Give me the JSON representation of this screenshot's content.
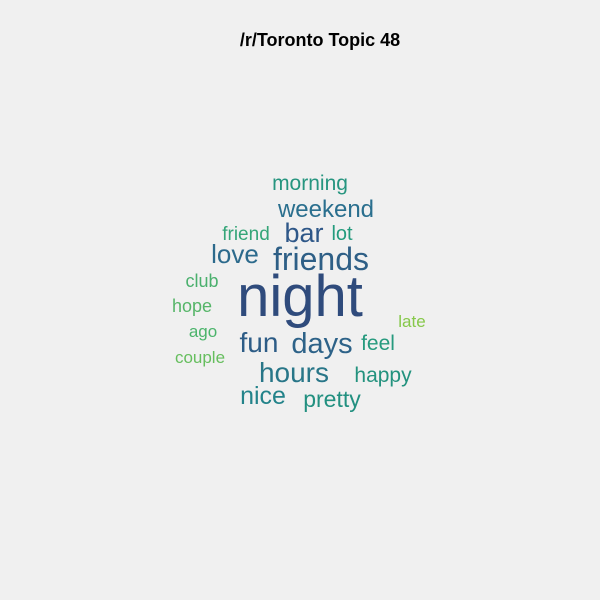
{
  "chart_data": {
    "type": "wordcloud",
    "title": "/r/Toronto Topic 48",
    "words": [
      {
        "text": "night",
        "weight": 1.0,
        "color": "#2f4b7c"
      },
      {
        "text": "friends",
        "weight": 0.55,
        "color": "#2e5f86"
      },
      {
        "text": "weekend",
        "weight": 0.42,
        "color": "#2a6f8e"
      },
      {
        "text": "bar",
        "weight": 0.46,
        "color": "#2e5788"
      },
      {
        "text": "love",
        "weight": 0.45,
        "color": "#2c6a8c"
      },
      {
        "text": "days",
        "weight": 0.5,
        "color": "#2d6288"
      },
      {
        "text": "fun",
        "weight": 0.48,
        "color": "#2d5c86"
      },
      {
        "text": "hours",
        "weight": 0.48,
        "color": "#287688"
      },
      {
        "text": "nice",
        "weight": 0.43,
        "color": "#23838a"
      },
      {
        "text": "pretty",
        "weight": 0.4,
        "color": "#229080"
      },
      {
        "text": "happy",
        "weight": 0.37,
        "color": "#23927e"
      },
      {
        "text": "feel",
        "weight": 0.36,
        "color": "#269a7e"
      },
      {
        "text": "morning",
        "weight": 0.36,
        "color": "#26957f"
      },
      {
        "text": "lot",
        "weight": 0.34,
        "color": "#239b7d"
      },
      {
        "text": "friend",
        "weight": 0.33,
        "color": "#35a578"
      },
      {
        "text": "club",
        "weight": 0.31,
        "color": "#4ab06d"
      },
      {
        "text": "hope",
        "weight": 0.31,
        "color": "#55b568"
      },
      {
        "text": "ago",
        "weight": 0.3,
        "color": "#4bb46b"
      },
      {
        "text": "couple",
        "weight": 0.3,
        "color": "#66be5e"
      },
      {
        "text": "late",
        "weight": 0.29,
        "color": "#86c84a"
      }
    ]
  }
}
